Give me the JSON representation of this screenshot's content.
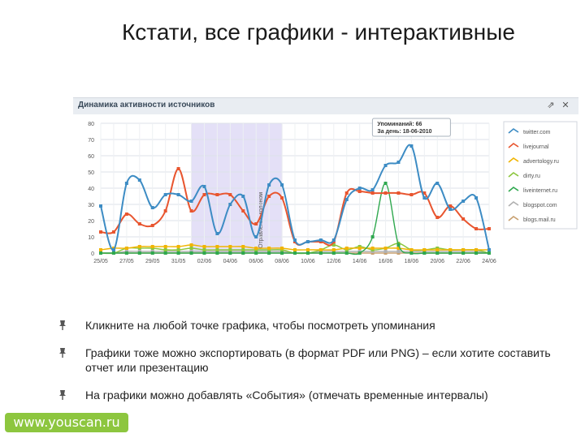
{
  "slide": {
    "title": "Кстати, все графики - интерактивные",
    "bullets": [
      "Кликните на любой точке графика, чтобы посмотреть упоминания",
      "Графики тоже можно экспортировать (в формат PDF или PNG) – если хотите составить отчет или презентацию",
      "На графики можно добавлять «События» (отмечать временные интервалы)"
    ],
    "footer_logo": "www.youscan.ru"
  },
  "widget": {
    "title": "Динамика активности источников",
    "icons": [
      "export-icon",
      "close-icon"
    ]
  },
  "chart_data": {
    "type": "line",
    "title": "Динамика активности источников",
    "x": [
      "25/05",
      "26/05",
      "27/05",
      "28/05",
      "29/05",
      "30/05",
      "31/05",
      "01/06",
      "02/06",
      "03/06",
      "04/06",
      "05/06",
      "06/06",
      "07/06",
      "08/06",
      "09/06",
      "10/06",
      "11/06",
      "12/06",
      "13/06",
      "14/06",
      "15/06",
      "16/06",
      "17/06",
      "18/06",
      "19/06",
      "20/06",
      "21/06",
      "22/06",
      "23/06",
      "24/06"
    ],
    "tick_labels": [
      "25/05",
      "27/05",
      "29/05",
      "31/05",
      "02/06",
      "04/06",
      "06/06",
      "08/06",
      "10/06",
      "12/06",
      "14/06",
      "16/06",
      "18/06",
      "20/06",
      "22/06",
      "24/06"
    ],
    "ylim": [
      0,
      80
    ],
    "yticks": [
      0,
      10,
      20,
      30,
      40,
      50,
      60,
      70,
      80
    ],
    "grid": true,
    "legend_position": "right",
    "series": [
      {
        "name": "twitter.com",
        "color": "#3d8cc4",
        "values": [
          29,
          2,
          43,
          45,
          28,
          36,
          36,
          32,
          41,
          12,
          30,
          35,
          10,
          42,
          42,
          8,
          7,
          8,
          8,
          33,
          40,
          39,
          54,
          56,
          66,
          34,
          43,
          27,
          32,
          34,
          2
        ]
      },
      {
        "name": "livejournal",
        "color": "#e8552f",
        "values": [
          13,
          13,
          24,
          18,
          17,
          26,
          52,
          26,
          36,
          36,
          36,
          26,
          18,
          35,
          34,
          7,
          7,
          7,
          7,
          37,
          38,
          37,
          37,
          37,
          36,
          37,
          22,
          29,
          21,
          15,
          15
        ]
      },
      {
        "name": "advertology.ru",
        "color": "#f0b400",
        "values": [
          2,
          3,
          3,
          4,
          4,
          4,
          4,
          5,
          4,
          4,
          4,
          4,
          3,
          3,
          3,
          2,
          2,
          2,
          2,
          3,
          3,
          3,
          3,
          3,
          2,
          2,
          2,
          2,
          2,
          2,
          2
        ]
      },
      {
        "name": "dirty.ru",
        "color": "#8cc63e",
        "values": [
          0,
          0,
          3,
          3,
          3,
          2,
          2,
          3,
          2,
          2,
          2,
          2,
          2,
          2,
          2,
          0,
          0,
          2,
          5,
          2,
          4,
          2,
          3,
          6,
          2,
          2,
          3,
          2,
          2,
          2,
          0
        ]
      },
      {
        "name": "liveinternet.ru",
        "color": "#2fa84f",
        "values": [
          0,
          0,
          0,
          0,
          0,
          0,
          0,
          0,
          0,
          0,
          0,
          0,
          0,
          0,
          0,
          0,
          0,
          0,
          0,
          0,
          0,
          10,
          43,
          5,
          0,
          0,
          0,
          0,
          0,
          0,
          0
        ]
      },
      {
        "name": "blogspot.com",
        "color": "#b0b0b0",
        "values": [
          0,
          0,
          1,
          1,
          1,
          1,
          1,
          1,
          1,
          1,
          1,
          1,
          1,
          1,
          1,
          0,
          0,
          1,
          1,
          1,
          1,
          1,
          1,
          1,
          1,
          1,
          1,
          1,
          1,
          1,
          0
        ]
      },
      {
        "name": "blogs.mail.ru",
        "color": "#c8a070",
        "values": [
          0,
          0,
          0,
          0,
          0,
          0,
          0,
          0,
          0,
          0,
          0,
          0,
          0,
          0,
          0,
          0,
          0,
          0,
          0,
          0,
          0,
          0,
          0,
          0,
          0,
          0,
          0,
          0,
          0,
          0,
          0
        ]
      }
    ],
    "event_band": {
      "from": "01/06",
      "to": "08/06",
      "label": "Отравление колоном"
    },
    "tooltip": {
      "line1": "Упоминаний: 66",
      "line2": "За день: 18-06-2010"
    }
  }
}
